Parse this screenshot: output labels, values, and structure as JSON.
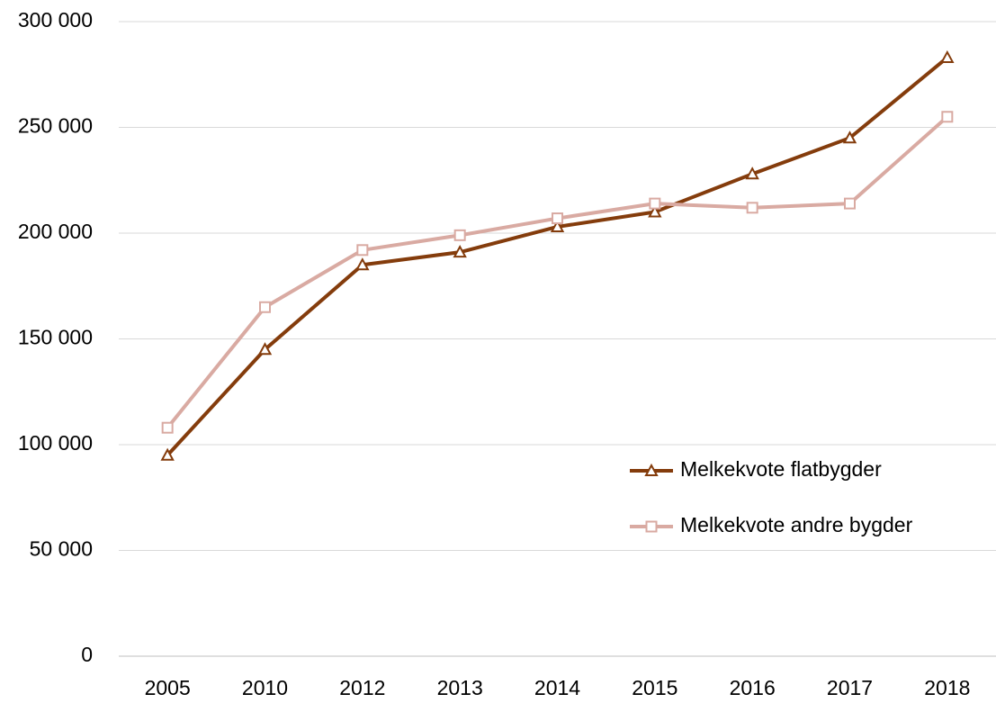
{
  "chart_data": {
    "type": "line",
    "categories": [
      "2005",
      "2010",
      "2012",
      "2013",
      "2014",
      "2015",
      "2016",
      "2017",
      "2018"
    ],
    "series": [
      {
        "name": "Melkekvote flatbygder",
        "color": "#843c0c",
        "marker": "triangle",
        "values": [
          95000,
          145000,
          185000,
          191000,
          203000,
          210000,
          228000,
          245000,
          283000
        ]
      },
      {
        "name": "Melkekvote andre bygder",
        "color": "#d9aaa2",
        "marker": "square",
        "values": [
          108000,
          165000,
          192000,
          199000,
          207000,
          214000,
          212000,
          214000,
          255000
        ]
      }
    ],
    "ylim": [
      0,
      300000
    ],
    "yticks": [
      0,
      {
        "value": 50000,
        "label": "50 000"
      },
      {
        "value": 100000,
        "label": "100 000"
      },
      {
        "value": 150000,
        "label": "150 000"
      },
      {
        "value": 200000,
        "label": "200 000"
      },
      {
        "value": 250000,
        "label": "250 000"
      },
      {
        "value": 300000,
        "label": "300 000"
      }
    ],
    "grid": true,
    "legend": "right"
  }
}
